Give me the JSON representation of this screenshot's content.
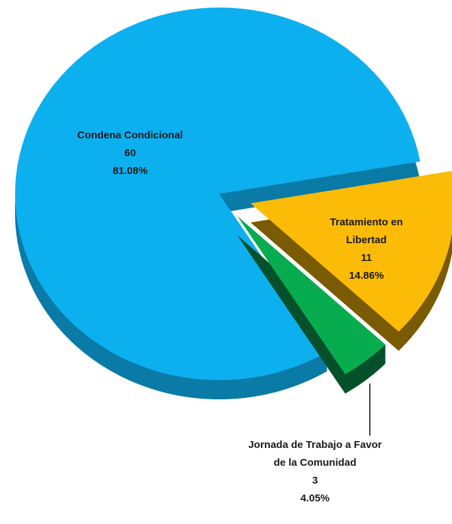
{
  "chart_data": {
    "type": "pie",
    "categories": [
      "Tratamiento en Libertad",
      "Jornada de Trabajo a Favor de la Comunidad",
      "Condena Condicional"
    ],
    "values": [
      11,
      3,
      60
    ],
    "percent_labels": [
      "14.86%",
      "4.05%",
      "81.08%"
    ],
    "colors": [
      "#fbbb06",
      "#07ac4e",
      "#0cb0ef"
    ],
    "side_colors": [
      "#7a5a02",
      "#04502a",
      "#0a7aa6"
    ]
  }
}
